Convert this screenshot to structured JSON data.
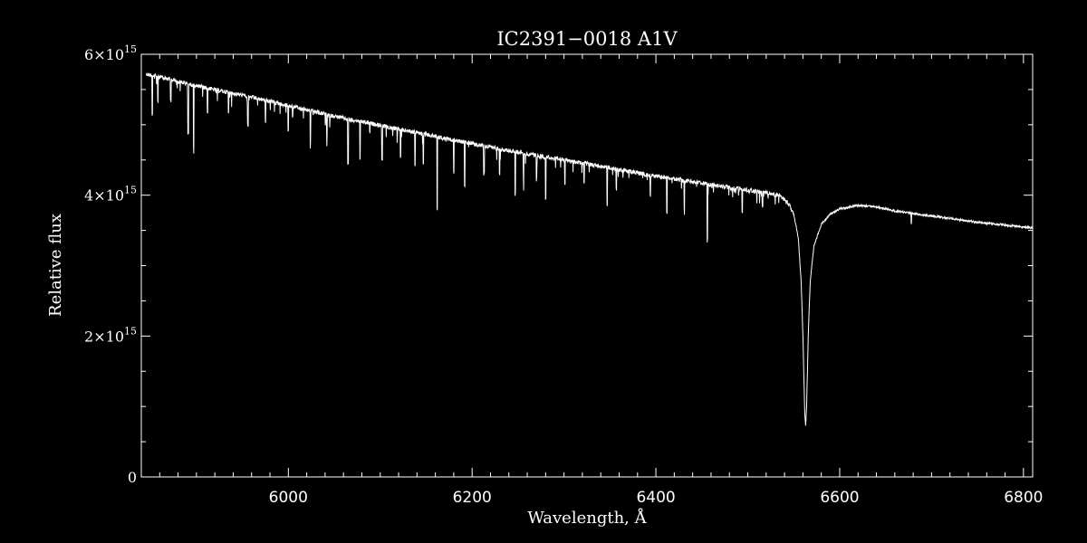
{
  "chart_data": {
    "type": "line",
    "title": "IC2391−0018   A1V",
    "xlabel": "Wavelength, Å",
    "ylabel": "Relative flux",
    "xlim": [
      5840,
      6810
    ],
    "ylim": [
      0,
      6000000000000000.0
    ],
    "x_ticks": [
      {
        "value": 6000,
        "label": "6000"
      },
      {
        "value": 6200,
        "label": "6200"
      },
      {
        "value": 6400,
        "label": "6400"
      },
      {
        "value": 6600,
        "label": "6600"
      },
      {
        "value": 6800,
        "label": "6800"
      }
    ],
    "y_ticks": [
      {
        "value": 0,
        "mant": "0",
        "exp": ""
      },
      {
        "value": 2000000000000000.0,
        "mant": "2×10",
        "exp": "15"
      },
      {
        "value": 4000000000000000.0,
        "mant": "4×10",
        "exp": "15"
      },
      {
        "value": 6000000000000000.0,
        "mant": "6×10",
        "exp": "15"
      }
    ],
    "series": [
      {
        "values": [
          [
            5845,
            5750000000000000.0
          ],
          [
            5870,
            5680000000000000.0
          ],
          [
            5900,
            5580000000000000.0
          ],
          [
            5950,
            5450000000000000.0
          ],
          [
            6000,
            5300000000000000.0
          ],
          [
            6050,
            5150000000000000.0
          ],
          [
            6100,
            5020000000000000.0
          ],
          [
            6150,
            4890000000000000.0
          ],
          [
            6200,
            4760000000000000.0
          ],
          [
            6250,
            4640000000000000.0
          ],
          [
            6300,
            4530000000000000.0
          ],
          [
            6350,
            4420000000000000.0
          ],
          [
            6400,
            4300000000000000.0
          ],
          [
            6450,
            4200000000000000.0
          ],
          [
            6500,
            4100000000000000.0
          ],
          [
            6520,
            4070000000000000.0
          ],
          [
            6535,
            4020000000000000.0
          ],
          [
            6545,
            3900000000000000.0
          ],
          [
            6550,
            3750000000000000.0
          ],
          [
            6555,
            3400000000000000.0
          ],
          [
            6558,
            2800000000000000.0
          ],
          [
            6560,
            2000000000000000.0
          ],
          [
            6562,
            900000000000000.0
          ],
          [
            6563,
            720000000000000.0
          ],
          [
            6564,
            1000000000000000.0
          ],
          [
            6566,
            2100000000000000.0
          ],
          [
            6568,
            2800000000000000.0
          ],
          [
            6572,
            3300000000000000.0
          ],
          [
            6580,
            3600000000000000.0
          ],
          [
            6590,
            3750000000000000.0
          ],
          [
            6600,
            3820000000000000.0
          ],
          [
            6620,
            3870000000000000.0
          ],
          [
            6640,
            3850000000000000.0
          ],
          [
            6660,
            3790000000000000.0
          ],
          [
            6700,
            3720000000000000.0
          ],
          [
            6750,
            3630000000000000.0
          ],
          [
            6810,
            3550000000000000.0
          ]
        ]
      }
    ],
    "absorption_lines": [
      [
        5852,
        550000000000000.0
      ],
      [
        5858,
        350000000000000.0
      ],
      [
        5872,
        300000000000000.0
      ],
      [
        5891,
        700000000000000.0
      ],
      [
        5897,
        850000000000000.0
      ],
      [
        5912,
        350000000000000.0
      ],
      [
        5935,
        300000000000000.0
      ],
      [
        5956,
        400000000000000.0
      ],
      [
        5975,
        300000000000000.0
      ],
      [
        6000,
        350000000000000.0
      ],
      [
        6024,
        450000000000000.0
      ],
      [
        6042,
        300000000000000.0
      ],
      [
        6065,
        650000000000000.0
      ],
      [
        6078,
        550000000000000.0
      ],
      [
        6102,
        500000000000000.0
      ],
      [
        6122,
        400000000000000.0
      ],
      [
        6138,
        450000000000000.0
      ],
      [
        6147,
        450000000000000.0
      ],
      [
        6162,
        1000000000000000.0
      ],
      [
        6180,
        450000000000000.0
      ],
      [
        6192,
        600000000000000.0
      ],
      [
        6213,
        400000000000000.0
      ],
      [
        6230,
        350000000000000.0
      ],
      [
        6247,
        600000000000000.0
      ],
      [
        6256,
        350000000000000.0
      ],
      [
        6270,
        300000000000000.0
      ],
      [
        6280,
        600000000000000.0
      ],
      [
        6301,
        350000000000000.0
      ],
      [
        6322,
        300000000000000.0
      ],
      [
        6347,
        550000000000000.0
      ],
      [
        6357,
        300000000000000.0
      ],
      [
        6394,
        300000000000000.0
      ],
      [
        6412,
        500000000000000.0
      ],
      [
        6431,
        400000000000000.0
      ],
      [
        6456,
        800000000000000.0
      ],
      [
        6494,
        350000000000000.0
      ],
      [
        6516,
        200000000000000.0
      ],
      [
        6678,
        150000000000000.0
      ]
    ]
  }
}
